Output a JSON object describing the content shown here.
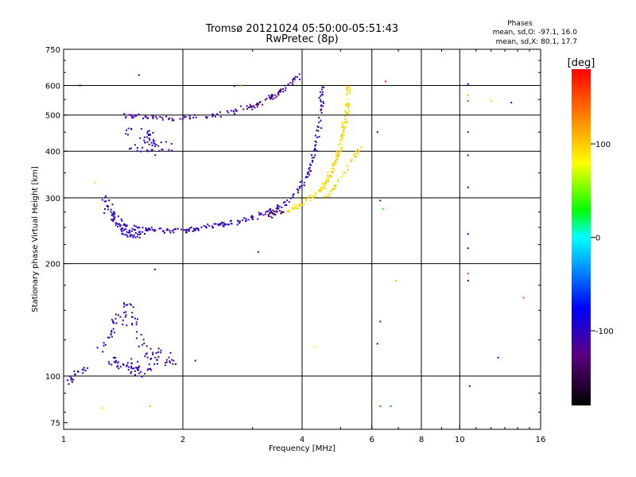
{
  "chart_data": {
    "type": "scatter",
    "title": "Tromsø 20121024 05:50:00-05:51:43",
    "subtitle": "RwPretec (8p)",
    "phases": {
      "title": "Phases",
      "line_o": "mean, sd,O: -97.1, 16.0",
      "line_x": "mean, sd,X:  80.1, 17.7"
    },
    "xlabel": "Frequency [MHz]",
    "ylabel": "Stationary phase Virtual Height [km]",
    "x_scale": "log",
    "y_scale": "log",
    "xlim": [
      1,
      16
    ],
    "ylim": [
      72,
      750
    ],
    "x_ticks": [
      1,
      2,
      4,
      6,
      8,
      10,
      16
    ],
    "x_tick_labels": [
      "1",
      "2",
      "4",
      "6",
      "8",
      "10",
      "16"
    ],
    "x_gridlines": [
      2,
      4,
      6,
      8,
      10
    ],
    "y_ticks": [
      75,
      100,
      200,
      300,
      400,
      500,
      600,
      750
    ],
    "y_tick_labels": [
      "75",
      "100",
      "200",
      "300",
      "400",
      "500",
      "600",
      "750"
    ],
    "y_gridlines": [
      100,
      200,
      300,
      400,
      500,
      600
    ],
    "grid": true,
    "colorbar": {
      "label": "[deg]",
      "range": [
        -180,
        180
      ],
      "ticks": [
        100,
        0,
        -100
      ],
      "tick_labels": [
        "100",
        "0",
        "-100"
      ]
    },
    "series": [
      {
        "trace": "upper-arc",
        "phase": -115,
        "points": [
          [
            1.4,
            500
          ],
          [
            1.5,
            497
          ],
          [
            1.6,
            492
          ],
          [
            1.7,
            490
          ],
          [
            1.8,
            488
          ],
          [
            1.9,
            490
          ],
          [
            2.0,
            492
          ],
          [
            2.2,
            495
          ],
          [
            2.4,
            500
          ],
          [
            2.6,
            505
          ],
          [
            2.8,
            515
          ],
          [
            3.0,
            528
          ],
          [
            3.2,
            545
          ],
          [
            3.4,
            565
          ],
          [
            3.6,
            590
          ],
          [
            3.8,
            620
          ],
          [
            4.0,
            645
          ]
        ],
        "spread": 0.035,
        "count": 110
      },
      {
        "trace": "upper-arc-dark",
        "phase": -140,
        "points": [
          [
            2.9,
            520
          ],
          [
            3.1,
            535
          ],
          [
            3.3,
            555
          ],
          [
            3.5,
            580
          ]
        ],
        "spread": 0.03,
        "count": 25
      },
      {
        "trace": "upper-blob",
        "phase": -110,
        "points": [
          [
            1.45,
            460
          ],
          [
            1.55,
            440
          ],
          [
            1.65,
            425
          ],
          [
            1.75,
            415
          ],
          [
            1.85,
            410
          ],
          [
            1.6,
            400
          ],
          [
            1.5,
            410
          ],
          [
            1.7,
            450
          ]
        ],
        "spread": 0.08,
        "count": 55
      },
      {
        "trace": "f-layer-o",
        "phase": -108,
        "points": [
          [
            1.3,
            262
          ],
          [
            1.4,
            255
          ],
          [
            1.5,
            250
          ],
          [
            1.6,
            248
          ],
          [
            1.8,
            245
          ],
          [
            2.0,
            245
          ],
          [
            2.2,
            248
          ],
          [
            2.4,
            252
          ],
          [
            2.6,
            256
          ],
          [
            2.8,
            260
          ],
          [
            3.0,
            266
          ],
          [
            3.2,
            273
          ],
          [
            3.4,
            280
          ],
          [
            3.6,
            290
          ],
          [
            3.8,
            305
          ],
          [
            4.0,
            325
          ],
          [
            4.2,
            360
          ],
          [
            4.35,
            420
          ],
          [
            4.45,
            500
          ],
          [
            4.5,
            600
          ]
        ],
        "spread": 0.035,
        "count": 240
      },
      {
        "trace": "f-layer-o-low",
        "phase": -105,
        "points": [
          [
            1.25,
            300
          ],
          [
            1.3,
            280
          ],
          [
            1.35,
            265
          ],
          [
            1.4,
            245
          ],
          [
            1.5,
            240
          ],
          [
            1.6,
            238
          ]
        ],
        "spread": 0.06,
        "count": 70
      },
      {
        "trace": "f-layer-o-dark",
        "phase": -140,
        "points": [
          [
            3.3,
            268
          ],
          [
            3.5,
            275
          ],
          [
            3.6,
            278
          ]
        ],
        "spread": 0.03,
        "count": 20
      },
      {
        "trace": "f-layer-x",
        "phase": 95,
        "points": [
          [
            3.7,
            275
          ],
          [
            3.9,
            285
          ],
          [
            4.1,
            295
          ],
          [
            4.3,
            305
          ],
          [
            4.5,
            320
          ],
          [
            4.7,
            345
          ],
          [
            4.9,
            380
          ],
          [
            5.0,
            420
          ],
          [
            5.1,
            460
          ],
          [
            5.2,
            520
          ],
          [
            5.25,
            600
          ]
        ],
        "spread": 0.03,
        "count": 160
      },
      {
        "trace": "x-branch",
        "phase": 95,
        "points": [
          [
            4.6,
            300
          ],
          [
            4.8,
            320
          ],
          [
            5.0,
            340
          ],
          [
            5.2,
            360
          ],
          [
            5.4,
            385
          ],
          [
            5.6,
            415
          ]
        ],
        "spread": 0.025,
        "count": 40
      },
      {
        "trace": "e-layer",
        "phase": -110,
        "points": [
          [
            1.2,
            115
          ],
          [
            1.3,
            125
          ],
          [
            1.35,
            138
          ],
          [
            1.4,
            145
          ],
          [
            1.45,
            155
          ],
          [
            1.5,
            140
          ],
          [
            1.55,
            128
          ],
          [
            1.6,
            118
          ],
          [
            1.65,
            110
          ],
          [
            1.7,
            112
          ],
          [
            1.8,
            118
          ],
          [
            1.9,
            108
          ],
          [
            1.5,
            105
          ],
          [
            1.4,
            112
          ],
          [
            1.3,
            110
          ],
          [
            1.6,
            102
          ]
        ],
        "spread": 0.07,
        "count": 140
      },
      {
        "trace": "e-layer-low",
        "phase": -105,
        "points": [
          [
            1.02,
            95
          ],
          [
            1.05,
            100
          ],
          [
            1.1,
            103
          ],
          [
            1.15,
            108
          ]
        ],
        "spread": 0.04,
        "count": 20
      }
    ],
    "scatter_points": [
      [
        1.1,
        600,
        -100
      ],
      [
        1.55,
        640,
        -110
      ],
      [
        1.2,
        330,
        60
      ],
      [
        2.7,
        598,
        -115
      ],
      [
        2.8,
        600,
        130
      ],
      [
        6.5,
        615,
        170
      ],
      [
        6.2,
        450,
        -110
      ],
      [
        6.3,
        295,
        -100
      ],
      [
        6.4,
        280,
        30
      ],
      [
        6.9,
        180,
        100
      ],
      [
        6.3,
        140,
        -110
      ],
      [
        6.2,
        122,
        -110
      ],
      [
        6.3,
        83,
        160
      ],
      [
        6.7,
        83,
        -40
      ],
      [
        4.3,
        120,
        80
      ],
      [
        10.5,
        605,
        -100
      ],
      [
        10.5,
        565,
        110
      ],
      [
        10.5,
        545,
        160
      ],
      [
        10.5,
        450,
        -115
      ],
      [
        10.5,
        390,
        -115
      ],
      [
        10.5,
        320,
        -90
      ],
      [
        10.5,
        240,
        -80
      ],
      [
        10.5,
        220,
        -80
      ],
      [
        10.5,
        188,
        160
      ],
      [
        10.5,
        180,
        -110
      ],
      [
        12.0,
        545,
        100
      ],
      [
        13.5,
        540,
        -105
      ],
      [
        12.5,
        112,
        -110
      ],
      [
        14.5,
        162,
        150
      ],
      [
        10.6,
        94,
        -90
      ],
      [
        2.15,
        110,
        -110
      ],
      [
        1.65,
        83,
        110
      ],
      [
        1.25,
        82,
        70
      ],
      [
        1.7,
        193,
        -110
      ],
      [
        3.1,
        215,
        -110
      ]
    ]
  }
}
